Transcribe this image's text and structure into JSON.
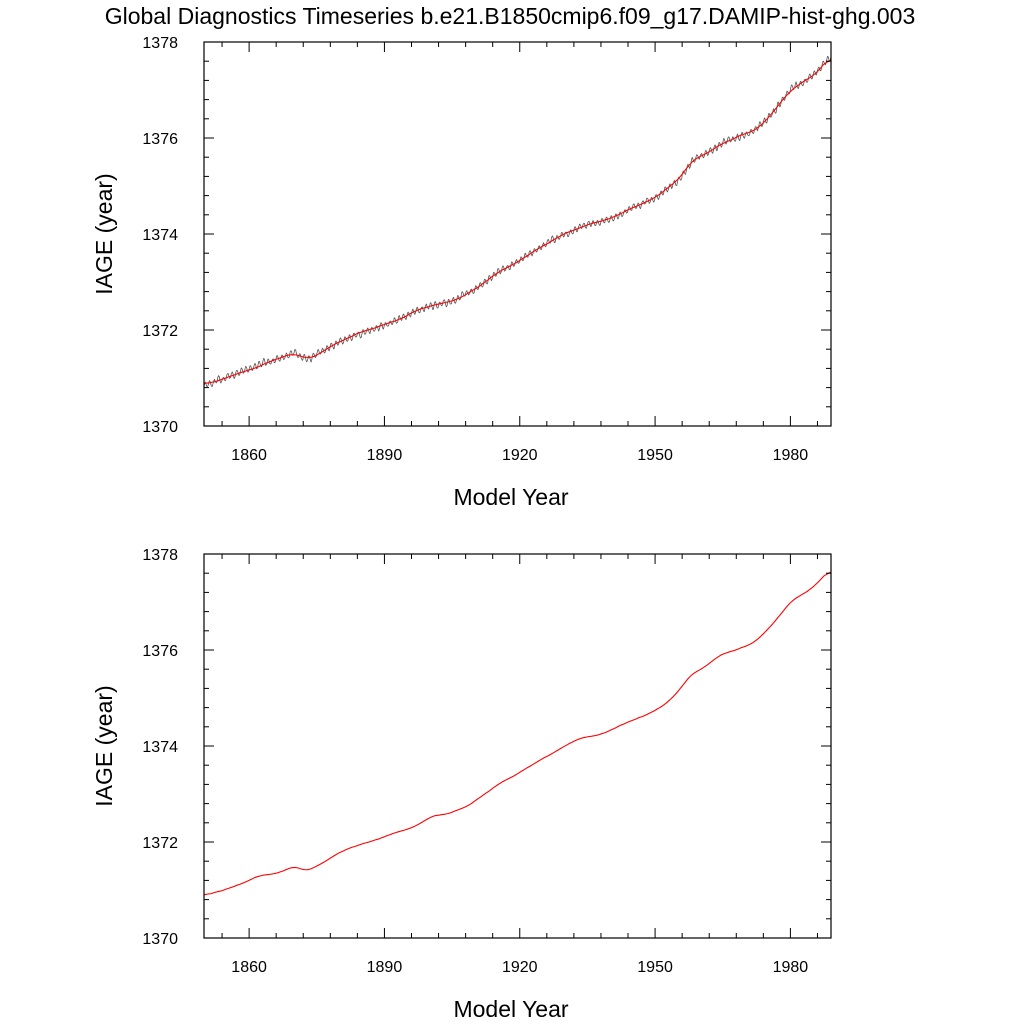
{
  "figure": {
    "title": "Global Diagnostics Timeseries b.e21.B1850cmip6.f09_g17.DAMIP-hist-ghg.003"
  },
  "chart_data": [
    {
      "type": "line",
      "xlabel": "Model Year",
      "ylabel": "IAGE (year)",
      "xlim": [
        1850,
        1989
      ],
      "ylim": [
        1370,
        1378
      ],
      "x_ticks": [
        1860,
        1890,
        1920,
        1950,
        1980
      ],
      "y_ticks": [
        1370,
        1372,
        1374,
        1376,
        1378
      ],
      "x_tick_labels": [
        "1860",
        "1890",
        "1920",
        "1950",
        "1980"
      ],
      "y_tick_labels": [
        "1370",
        "1372",
        "1374",
        "1376",
        "1378"
      ],
      "grid": false,
      "legend": "none",
      "series": [
        {
          "color": "#555555",
          "style": "monthly values with seasonal cycle",
          "x": [
            1850,
            1855,
            1860,
            1865,
            1870,
            1873,
            1875,
            1880,
            1885,
            1890,
            1895,
            1900,
            1905,
            1910,
            1915,
            1920,
            1925,
            1930,
            1935,
            1940,
            1945,
            1950,
            1955,
            1958,
            1965,
            1972,
            1975,
            1980,
            1985,
            1989
          ],
          "values": [
            1370.85,
            1371.0,
            1371.2,
            1371.35,
            1371.5,
            1371.4,
            1371.5,
            1371.75,
            1371.95,
            1372.1,
            1372.3,
            1372.5,
            1372.6,
            1372.85,
            1373.2,
            1373.45,
            1373.75,
            1374.0,
            1374.2,
            1374.3,
            1374.55,
            1374.75,
            1375.1,
            1375.5,
            1375.9,
            1376.15,
            1376.4,
            1377.0,
            1377.3,
            1377.7
          ]
        },
        {
          "color": "#ff0000",
          "style": "annual mean",
          "x": [
            1850,
            1855,
            1860,
            1865,
            1870,
            1873,
            1875,
            1880,
            1885,
            1890,
            1895,
            1900,
            1905,
            1910,
            1915,
            1920,
            1925,
            1930,
            1935,
            1940,
            1945,
            1950,
            1955,
            1958,
            1965,
            1972,
            1975,
            1980,
            1985,
            1989
          ],
          "values": [
            1370.85,
            1371.0,
            1371.2,
            1371.35,
            1371.5,
            1371.4,
            1371.5,
            1371.75,
            1371.95,
            1372.1,
            1372.3,
            1372.5,
            1372.6,
            1372.85,
            1373.2,
            1373.45,
            1373.75,
            1374.0,
            1374.2,
            1374.3,
            1374.55,
            1374.75,
            1375.1,
            1375.5,
            1375.9,
            1376.15,
            1376.4,
            1377.0,
            1377.3,
            1377.7
          ]
        }
      ]
    },
    {
      "type": "line",
      "xlabel": "Model Year",
      "ylabel": "IAGE (year)",
      "xlim": [
        1850,
        1989
      ],
      "ylim": [
        1370,
        1378
      ],
      "x_ticks": [
        1860,
        1890,
        1920,
        1950,
        1980
      ],
      "y_ticks": [
        1370,
        1372,
        1374,
        1376,
        1378
      ],
      "x_tick_labels": [
        "1860",
        "1890",
        "1920",
        "1950",
        "1980"
      ],
      "y_tick_labels": [
        "1370",
        "1372",
        "1374",
        "1376",
        "1378"
      ],
      "grid": false,
      "legend": "none",
      "series": [
        {
          "color": "#ff0000",
          "style": "annual mean",
          "x": [
            1850,
            1855,
            1860,
            1865,
            1870,
            1873,
            1875,
            1880,
            1885,
            1890,
            1895,
            1900,
            1905,
            1910,
            1915,
            1920,
            1925,
            1930,
            1935,
            1940,
            1945,
            1950,
            1955,
            1958,
            1965,
            1972,
            1975,
            1980,
            1985,
            1989
          ],
          "values": [
            1370.85,
            1371.0,
            1371.2,
            1371.35,
            1371.5,
            1371.4,
            1371.5,
            1371.75,
            1371.95,
            1372.1,
            1372.3,
            1372.5,
            1372.6,
            1372.85,
            1373.2,
            1373.45,
            1373.75,
            1374.0,
            1374.2,
            1374.3,
            1374.55,
            1374.75,
            1375.1,
            1375.5,
            1375.9,
            1376.15,
            1376.4,
            1377.0,
            1377.3,
            1377.7
          ]
        }
      ]
    }
  ]
}
